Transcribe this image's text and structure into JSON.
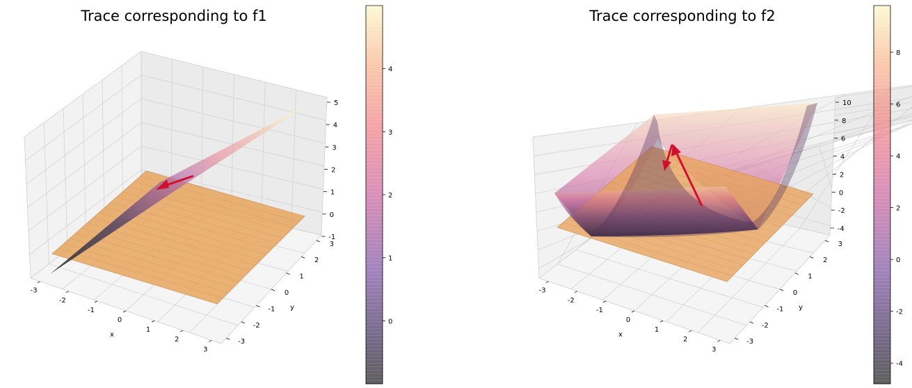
{
  "chart_data": [
    {
      "type": "surface3d",
      "title": "Trace corresponding to f1",
      "xlabel": "x",
      "ylabel": "y",
      "zlabel": "",
      "xlim": [
        -3,
        3
      ],
      "ylim": [
        -3,
        3
      ],
      "zlim": [
        -1,
        5
      ],
      "x_ticks": [
        "-3",
        "-2",
        "-1",
        "0",
        "1",
        "2",
        "3"
      ],
      "y_ticks": [
        "-3",
        "-2",
        "-1",
        "0",
        "1",
        "2",
        "3"
      ],
      "z_ticks": [
        "-1",
        "0",
        "1",
        "2",
        "3",
        "4",
        "5"
      ],
      "surface_z_range": [
        -1,
        5
      ],
      "plane_z": 0,
      "arrow_tail": [
        0.3,
        0.3,
        1.5
      ],
      "arrow_head": [
        -0.5,
        -0.5,
        0.9
      ],
      "colorbar": {
        "ticks": [
          "0",
          "1",
          "2",
          "3",
          "4"
        ],
        "range": [
          -1,
          5
        ],
        "cmap": "magma"
      },
      "colors": {
        "plane": "#e8a45e",
        "arrow": "#d0102e"
      }
    },
    {
      "type": "surface3d",
      "title": "Trace corresponding to f2",
      "xlabel": "x",
      "ylabel": "y",
      "zlabel": "",
      "xlim": [
        -3,
        3
      ],
      "ylim": [
        -3,
        3
      ],
      "zlim": [
        -5,
        10
      ],
      "x_ticks": [
        "-3",
        "-2",
        "-1",
        "0",
        "1",
        "2",
        "3"
      ],
      "y_ticks": [
        "-3",
        "-2",
        "-1",
        "0",
        "1",
        "2",
        "3"
      ],
      "z_ticks": [
        "-4",
        "-2",
        "0",
        "2",
        "4",
        "6",
        "8",
        "10"
      ],
      "surface_z_range": [
        -4.5,
        9.8
      ],
      "plane_z": 0,
      "arrow_tail": [
        0.5,
        0.0,
        -1.0
      ],
      "arrow_head": [
        -0.7,
        0.3,
        5.8
      ],
      "arrow2_head": [
        -1.0,
        0.8,
        2.0
      ],
      "colorbar": {
        "ticks": [
          "-4",
          "-2",
          "0",
          "2",
          "4",
          "6",
          "8"
        ],
        "range": [
          -4.8,
          9.8
        ],
        "cmap": "magma"
      },
      "colors": {
        "plane": "#e8a45e",
        "arrow": "#d0102e"
      }
    }
  ]
}
